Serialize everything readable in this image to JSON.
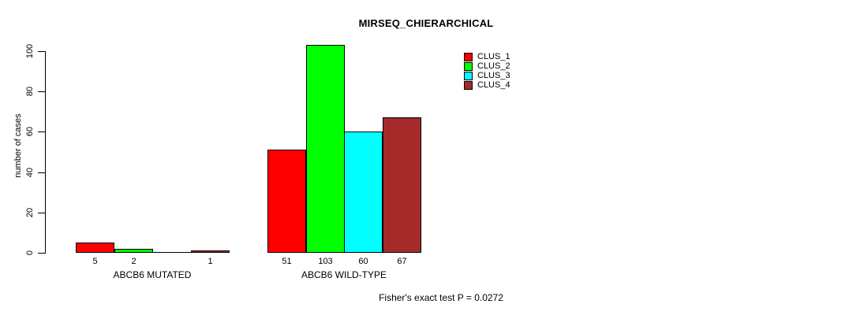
{
  "chart_data": {
    "type": "bar",
    "title": "MIRSEQ_CHIERARCHICAL",
    "ylabel": "number of cases",
    "xlabel": "",
    "yticks": [
      0,
      20,
      40,
      60,
      80,
      100
    ],
    "ylim": [
      0,
      105
    ],
    "grid": false,
    "legend_position": "top-right",
    "categories": [
      "ABCB6 MUTATED",
      "ABCB6 WILD-TYPE"
    ],
    "series": [
      {
        "name": "CLUS_1",
        "color": "#FF0000",
        "values": [
          5,
          51
        ]
      },
      {
        "name": "CLUS_2",
        "color": "#00FF00",
        "values": [
          2,
          103
        ]
      },
      {
        "name": "CLUS_3",
        "color": "#00FFFF",
        "values": [
          0,
          60
        ]
      },
      {
        "name": "CLUS_4",
        "color": "#A52A2A",
        "values": [
          1,
          67
        ]
      }
    ],
    "bar_value_labels": {
      "show": true,
      "hide_zero": true
    },
    "axis_color": "#000000",
    "annotation": "Fisher's exact test P = 0.0272"
  }
}
